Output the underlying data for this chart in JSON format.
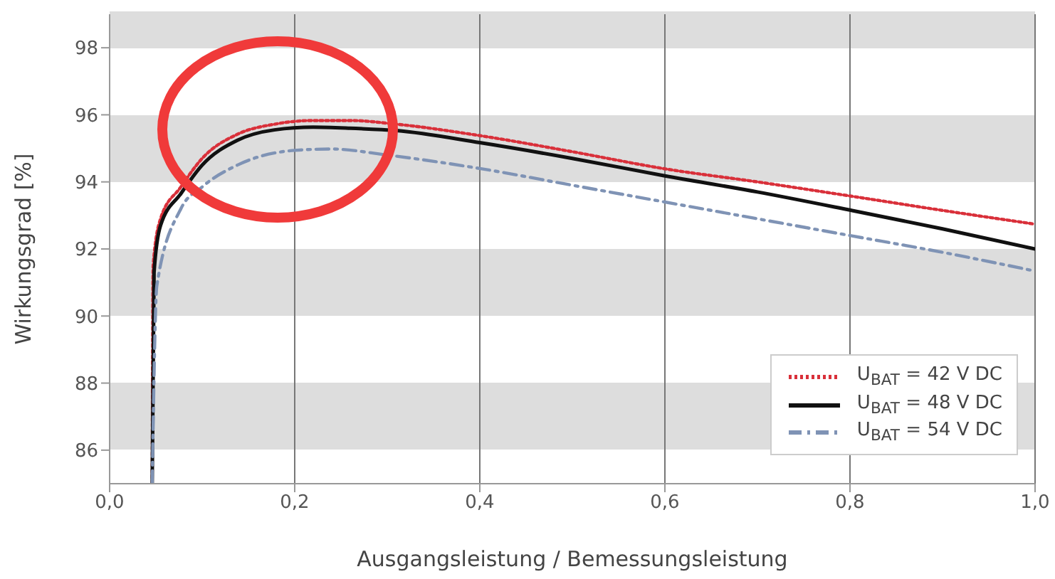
{
  "chart_data": {
    "type": "line",
    "xlabel": "Ausgangsleistung / Bemessungsleistung",
    "ylabel": "Wirkungsgrad [%]",
    "xlim": [
      0,
      1
    ],
    "xticks": [
      {
        "value": 0,
        "label": "0,0"
      },
      {
        "value": 0.2,
        "label": "0,2"
      },
      {
        "value": 0.4,
        "label": "0,4"
      },
      {
        "value": 0.6,
        "label": "0,6"
      },
      {
        "value": 0.8,
        "label": "0,8"
      },
      {
        "value": 1,
        "label": "1,0"
      }
    ],
    "ylim": [
      85,
      99
    ],
    "yticks": [
      86,
      88,
      90,
      92,
      94,
      96,
      98
    ],
    "grid": true,
    "legend": "bottom right",
    "marker": "none",
    "series": [
      {
        "name": "U$_{BAT}$ = 42 V DC",
        "color": "#d9303a",
        "line_style": "dotted",
        "x": [
          0.046,
          0.047,
          0.055,
          0.077,
          0.1,
          0.138,
          0.178,
          0.22,
          0.26,
          0.31,
          0.4,
          0.5,
          0.6,
          0.7,
          0.8,
          0.9,
          1.0
        ],
        "values": [
          85,
          91.5,
          92.9,
          93.85,
          94.7,
          95.42,
          95.72,
          95.83,
          95.83,
          95.72,
          95.38,
          94.9,
          94.39,
          94.0,
          93.58,
          93.15,
          92.74
        ]
      },
      {
        "name": "U$_{BAT}$ = 48 V DC",
        "color": "#111111",
        "line_style": "solid",
        "x": [
          0.046,
          0.048,
          0.055,
          0.077,
          0.1,
          0.138,
          0.178,
          0.22,
          0.26,
          0.31,
          0.4,
          0.5,
          0.6,
          0.7,
          0.8,
          0.9,
          1.0
        ],
        "values": [
          85,
          91.3,
          92.7,
          93.65,
          94.5,
          95.24,
          95.55,
          95.63,
          95.6,
          95.53,
          95.17,
          94.7,
          94.18,
          93.7,
          93.16,
          92.6,
          92.0
        ]
      },
      {
        "name": "U$_{BAT}$ = 54 V DC",
        "color": "#7f93b5",
        "line_style": "dashed",
        "x": [
          0.046,
          0.051,
          0.077,
          0.1,
          0.138,
          0.2,
          0.24,
          0.3,
          0.4,
          0.5,
          0.6,
          0.7,
          0.8,
          0.9,
          1.0
        ],
        "values": [
          85,
          90.9,
          93.2,
          93.85,
          94.5,
          94.94,
          94.98,
          94.8,
          94.4,
          93.9,
          93.4,
          92.9,
          92.4,
          91.9,
          91.34
        ]
      }
    ]
  }
}
